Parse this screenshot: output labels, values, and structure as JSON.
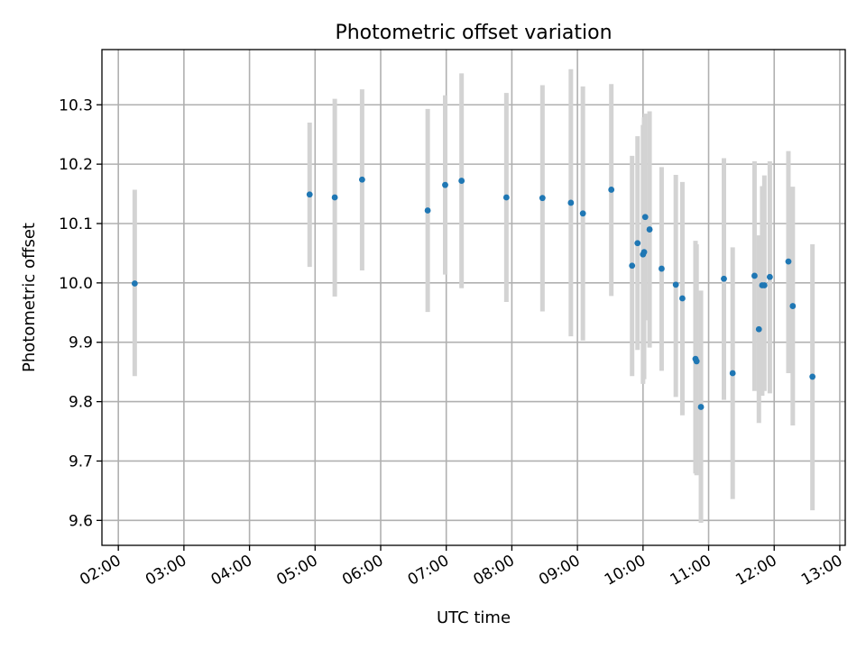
{
  "chart_data": {
    "type": "scatter",
    "title": "Photometric offset variation",
    "xlabel": "UTC time",
    "ylabel": "Photometric offset",
    "xlim": [
      "01:45",
      "13:05"
    ],
    "ylim": [
      9.558,
      10.393
    ],
    "grid": true,
    "x_ticks": [
      "02:00",
      "03:00",
      "04:00",
      "05:00",
      "06:00",
      "07:00",
      "08:00",
      "09:00",
      "10:00",
      "11:00",
      "12:00",
      "13:00"
    ],
    "y_ticks": [
      "9.6",
      "9.7",
      "9.8",
      "9.9",
      "10.0",
      "10.1",
      "10.2",
      "10.3"
    ],
    "colors": {
      "marker": "#1f77b4",
      "errorbar": "#d3d3d3"
    },
    "series": [
      {
        "points": [
          {
            "x": "02:15",
            "y": 9.999,
            "low": 9.843,
            "high": 10.157
          },
          {
            "x": "04:55",
            "y": 10.149,
            "low": 10.027,
            "high": 10.27
          },
          {
            "x": "05:18",
            "y": 10.144,
            "low": 9.977,
            "high": 10.31
          },
          {
            "x": "05:43",
            "y": 10.174,
            "low": 10.021,
            "high": 10.326
          },
          {
            "x": "06:43",
            "y": 10.122,
            "low": 9.951,
            "high": 10.293
          },
          {
            "x": "06:59",
            "y": 10.165,
            "low": 10.014,
            "high": 10.316
          },
          {
            "x": "07:14",
            "y": 10.172,
            "low": 9.991,
            "high": 10.353
          },
          {
            "x": "07:55",
            "y": 10.144,
            "low": 9.968,
            "high": 10.32
          },
          {
            "x": "08:28",
            "y": 10.143,
            "low": 9.952,
            "high": 10.333
          },
          {
            "x": "08:54",
            "y": 10.135,
            "low": 9.91,
            "high": 10.36
          },
          {
            "x": "09:05",
            "y": 10.117,
            "low": 9.903,
            "high": 10.331
          },
          {
            "x": "09:31",
            "y": 10.157,
            "low": 9.978,
            "high": 10.335
          },
          {
            "x": "09:50",
            "y": 10.029,
            "low": 9.843,
            "high": 10.214
          },
          {
            "x": "09:55",
            "y": 10.067,
            "low": 9.887,
            "high": 10.247
          },
          {
            "x": "10:00",
            "y": 10.048,
            "low": 9.83,
            "high": 10.266
          },
          {
            "x": "10:01",
            "y": 10.052,
            "low": 9.838,
            "high": 10.279
          },
          {
            "x": "10:02",
            "y": 10.111,
            "low": 9.937,
            "high": 10.285
          },
          {
            "x": "10:06",
            "y": 10.09,
            "low": 9.891,
            "high": 10.289
          },
          {
            "x": "10:17",
            "y": 10.024,
            "low": 9.852,
            "high": 10.195
          },
          {
            "x": "10:30",
            "y": 9.997,
            "low": 9.808,
            "high": 10.182
          },
          {
            "x": "10:36",
            "y": 9.974,
            "low": 9.777,
            "high": 10.17
          },
          {
            "x": "10:48",
            "y": 9.872,
            "low": 9.679,
            "high": 10.071
          },
          {
            "x": "10:49",
            "y": 9.868,
            "low": 9.676,
            "high": 10.065
          },
          {
            "x": "10:53",
            "y": 9.791,
            "low": 9.596,
            "high": 9.987
          },
          {
            "x": "11:14",
            "y": 10.007,
            "low": 9.803,
            "high": 10.21
          },
          {
            "x": "11:22",
            "y": 9.848,
            "low": 9.636,
            "high": 10.06
          },
          {
            "x": "11:42",
            "y": 10.012,
            "low": 9.818,
            "high": 10.205
          },
          {
            "x": "11:46",
            "y": 9.922,
            "low": 9.764,
            "high": 10.08
          },
          {
            "x": "11:49",
            "y": 9.996,
            "low": 9.81,
            "high": 10.163
          },
          {
            "x": "11:51",
            "y": 9.996,
            "low": 9.818,
            "high": 10.181
          },
          {
            "x": "11:56",
            "y": 10.01,
            "low": 9.814,
            "high": 10.205
          },
          {
            "x": "12:13",
            "y": 10.036,
            "low": 9.848,
            "high": 10.222
          },
          {
            "x": "12:17",
            "y": 9.961,
            "low": 9.76,
            "high": 10.162
          },
          {
            "x": "12:35",
            "y": 9.842,
            "low": 9.617,
            "high": 10.065
          }
        ]
      }
    ]
  }
}
